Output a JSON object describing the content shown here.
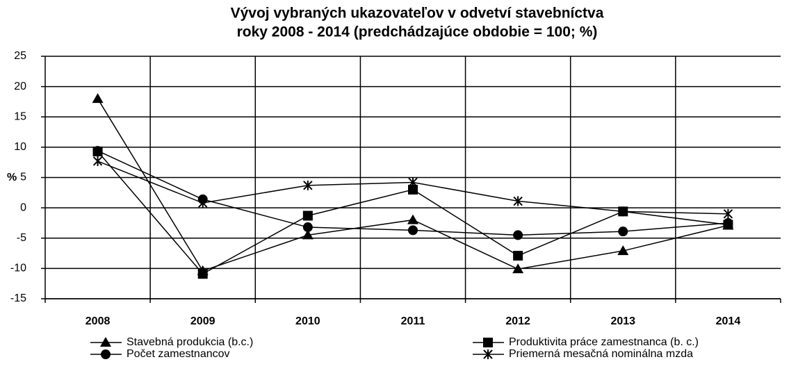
{
  "chart_data": {
    "type": "line",
    "title": [
      "Vývoj vybraných ukazovateľov v odvetví stavebníctva",
      "roky 2008 - 2014 (predchádzajúce obdobie = 100; %)"
    ],
    "y_label": "%",
    "categories": [
      "2008",
      "2009",
      "2010",
      "2011",
      "2012",
      "2013",
      "2014"
    ],
    "series": [
      {
        "name": "Stavebná produkcia (b.c.)",
        "color": "#000000",
        "marker": "triangle",
        "values": [
          18.0,
          -10.4,
          -4.5,
          -2.0,
          -10.1,
          -7.1,
          -2.9
        ]
      },
      {
        "name": "Produktivita práce zamestnanca (b. c.)",
        "color": "#000000",
        "marker": "square",
        "values": [
          9.3,
          -10.9,
          -1.3,
          3.0,
          -7.9,
          -0.6,
          -2.8
        ]
      },
      {
        "name": "Počet zamestnancov",
        "color": "#000000",
        "marker": "circle",
        "values": [
          9.4,
          1.4,
          -3.2,
          -3.7,
          -4.5,
          -3.9,
          -2.5
        ]
      },
      {
        "name": "Priemerná mesačná nominálna mzda",
        "color": "#000000",
        "marker": "asterisk",
        "values": [
          7.7,
          0.8,
          3.7,
          4.2,
          1.1,
          -0.6,
          -1.0
        ]
      }
    ],
    "ylim": [
      -15,
      25
    ],
    "yticks": [
      -15,
      -10,
      -5,
      0,
      5,
      10,
      15,
      20,
      25
    ],
    "grid": true,
    "legend": "bottom"
  }
}
